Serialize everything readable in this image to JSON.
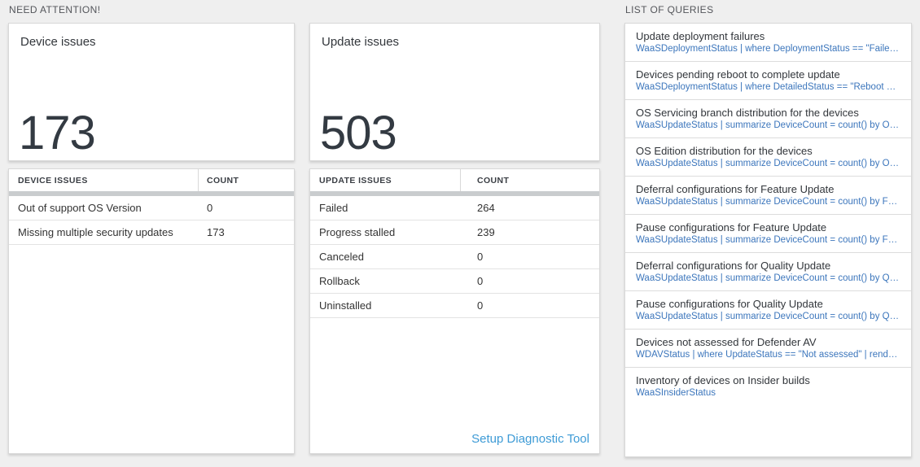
{
  "sections": {
    "need_attention": "NEED ATTENTION!",
    "list_of_queries": "LIST OF QUERIES"
  },
  "cards": {
    "device_issues": {
      "title": "Device issues",
      "count": "173"
    },
    "update_issues": {
      "title": "Update issues",
      "count": "503"
    }
  },
  "tables": {
    "device_issues": {
      "headers": {
        "issues": "DEVICE ISSUES",
        "count": "COUNT"
      },
      "rows": [
        {
          "label": "Out of support OS Version",
          "count": "0"
        },
        {
          "label": "Missing multiple security updates",
          "count": "173"
        }
      ]
    },
    "update_issues": {
      "headers": {
        "issues": "UPDATE ISSUES",
        "count": "COUNT"
      },
      "rows": [
        {
          "label": "Failed",
          "count": "264"
        },
        {
          "label": "Progress stalled",
          "count": "239"
        },
        {
          "label": "Canceled",
          "count": "0"
        },
        {
          "label": "Rollback",
          "count": "0"
        },
        {
          "label": "Uninstalled",
          "count": "0"
        }
      ],
      "footer_link": "Setup Diagnostic Tool"
    }
  },
  "queries": {
    "items": [
      {
        "title": "Update deployment failures",
        "query": "WaaSDeploymentStatus | where DeploymentStatus == \"Failed\" |..."
      },
      {
        "title": "Devices pending reboot to complete update",
        "query": "WaaSDeploymentStatus | where DetailedStatus == \"Reboot pend..."
      },
      {
        "title": "OS Servicing branch distribution for the devices",
        "query": "WaaSUpdateStatus | summarize DeviceCount = count() by OSSer..."
      },
      {
        "title": "OS Edition distribution for the devices",
        "query": "WaaSUpdateStatus | summarize DeviceCount = count() by OSEdit..."
      },
      {
        "title": "Deferral configurations for Feature Update",
        "query": "WaaSUpdateStatus | summarize DeviceCount = count() by Featur..."
      },
      {
        "title": "Pause configurations for Feature Update",
        "query": "WaaSUpdateStatus | summarize DeviceCount = count() by Featur..."
      },
      {
        "title": "Deferral configurations for Quality Update",
        "query": "WaaSUpdateStatus | summarize DeviceCount = count() by Qualit..."
      },
      {
        "title": "Pause configurations for Quality Update",
        "query": "WaaSUpdateStatus | summarize DeviceCount = count() by Qualit..."
      },
      {
        "title": "Devices not assessed for Defender AV",
        "query": "WDAVStatus | where UpdateStatus == \"Not assessed\" | render ta..."
      },
      {
        "title": "Inventory of devices on Insider builds",
        "query": "WaaSInsiderStatus"
      }
    ]
  },
  "colors": {
    "query_link_blue": "#3c76bc",
    "action_link_blue": "#3e9bd6",
    "big_number": "#333a42",
    "thick_bar": "#c9ccce",
    "page_background": "#efefef"
  }
}
